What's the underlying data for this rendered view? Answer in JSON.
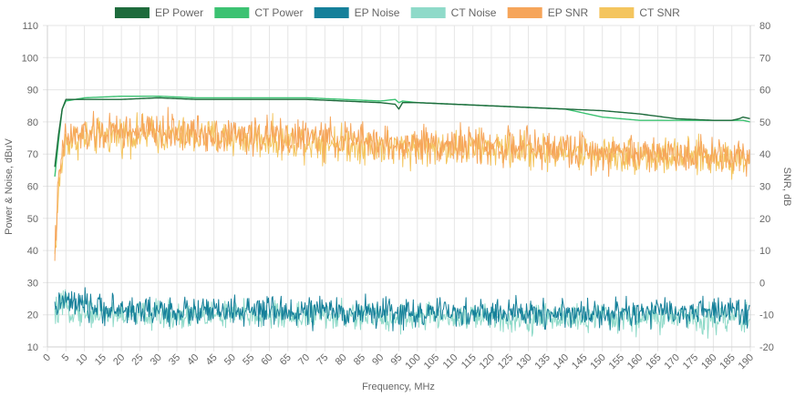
{
  "chart_data": {
    "type": "line",
    "title": "",
    "xlabel": "Frequency, MHz",
    "ylabel_left": "Power & Noise, dBuV",
    "ylabel_right": "SNR, dB",
    "xlim": [
      0,
      190
    ],
    "ylim_left": [
      10,
      110
    ],
    "ylim_right": [
      -20,
      80
    ],
    "x_ticks": [
      "0",
      "5",
      "10",
      "15",
      "20",
      "25",
      "30",
      "35",
      "40",
      "45",
      "50",
      "55",
      "60",
      "65",
      "70",
      "75",
      "80",
      "85",
      "90",
      "95",
      "100",
      "105",
      "110",
      "115",
      "120",
      "125",
      "130",
      "135",
      "140",
      "145",
      "150",
      "155",
      "160",
      "165",
      "170",
      "175",
      "180",
      "185",
      "190"
    ],
    "y_ticks_left": [
      "10",
      "20",
      "30",
      "40",
      "50",
      "60",
      "70",
      "80",
      "90",
      "100",
      "110"
    ],
    "y_ticks_right": [
      "-20",
      "-10",
      "0",
      "10",
      "20",
      "30",
      "40",
      "50",
      "60",
      "70",
      "80"
    ],
    "grid": true,
    "legend_position": "top-center",
    "series": [
      {
        "name": "EP Power",
        "axis": "left",
        "color": "#1e6b3c",
        "x": [
          2,
          3,
          4,
          5,
          10,
          20,
          30,
          40,
          50,
          60,
          70,
          80,
          90,
          94,
          95,
          96,
          100,
          110,
          120,
          130,
          140,
          150,
          160,
          170,
          180,
          185,
          187,
          188,
          190
        ],
        "values": [
          66,
          76,
          84,
          87,
          87,
          87,
          87.5,
          87,
          87,
          87,
          87,
          86.5,
          86,
          85.5,
          84,
          86,
          86,
          85.5,
          85,
          84.5,
          84,
          83.5,
          82.5,
          81,
          80.5,
          80.5,
          81,
          81.5,
          81
        ]
      },
      {
        "name": "CT Power",
        "axis": "left",
        "color": "#3cc272",
        "x": [
          2,
          3,
          4,
          5,
          10,
          20,
          30,
          40,
          50,
          60,
          70,
          80,
          90,
          94,
          95,
          96,
          100,
          110,
          120,
          130,
          140,
          150,
          160,
          170,
          180,
          185,
          187,
          188,
          190
        ],
        "values": [
          63,
          74,
          84,
          86.5,
          87.5,
          88,
          88,
          87.5,
          87.5,
          87.5,
          87.5,
          87,
          86.5,
          87,
          86,
          86.5,
          86,
          85.5,
          85,
          84.5,
          84,
          81.5,
          80.5,
          80.5,
          80.5,
          80.5,
          80.5,
          80.5,
          80
        ]
      },
      {
        "name": "EP Noise",
        "axis": "left",
        "color": "#15809a",
        "x": [
          2,
          3,
          5,
          10,
          20,
          40,
          60,
          80,
          100,
          120,
          140,
          160,
          180,
          190
        ],
        "values": [
          20,
          24,
          24,
          22.5,
          21.5,
          21,
          21,
          21,
          20.5,
          20.5,
          20.5,
          20.5,
          21,
          21
        ],
        "noise": 2.2
      },
      {
        "name": "CT Noise",
        "axis": "left",
        "color": "#8fdac9",
        "x": [
          2,
          3,
          5,
          10,
          20,
          40,
          60,
          80,
          100,
          120,
          140,
          160,
          180,
          190
        ],
        "values": [
          19,
          22,
          22,
          21,
          20,
          20,
          20,
          19.5,
          19.5,
          19,
          19,
          19,
          19,
          19
        ],
        "noise": 2.2
      },
      {
        "name": "EP SNR",
        "axis": "right",
        "color": "#f6a55a",
        "x": [
          2,
          3,
          4,
          5,
          10,
          20,
          30,
          40,
          50,
          60,
          70,
          80,
          90,
          95,
          100,
          110,
          120,
          130,
          140,
          150,
          160,
          170,
          180,
          190
        ],
        "values": [
          10,
          30,
          40,
          45,
          46,
          47,
          47,
          46.5,
          46,
          45.5,
          45,
          44.5,
          43.5,
          42,
          43.5,
          43,
          42.5,
          42,
          41.5,
          41,
          40.5,
          40,
          40,
          40
        ],
        "noise": 2.8
      },
      {
        "name": "CT SNR",
        "axis": "right",
        "color": "#f4c55e",
        "x": [
          2,
          3,
          4,
          5,
          10,
          20,
          30,
          40,
          50,
          60,
          70,
          80,
          90,
          95,
          100,
          110,
          120,
          130,
          140,
          150,
          160,
          170,
          180,
          190
        ],
        "values": [
          8,
          28,
          38,
          44,
          45,
          46,
          46,
          45.5,
          45,
          44.5,
          44,
          43.5,
          42.5,
          41.5,
          42.5,
          42,
          41.5,
          41,
          40.5,
          40,
          39.5,
          39,
          39,
          39
        ],
        "noise": 2.8
      }
    ]
  },
  "legend": [
    {
      "label": "EP Power",
      "color": "#1e6b3c"
    },
    {
      "label": "CT Power",
      "color": "#3cc272"
    },
    {
      "label": "EP Noise",
      "color": "#15809a"
    },
    {
      "label": "CT Noise",
      "color": "#8fdac9"
    },
    {
      "label": "EP SNR",
      "color": "#f6a55a"
    },
    {
      "label": "CT SNR",
      "color": "#f4c55e"
    }
  ]
}
